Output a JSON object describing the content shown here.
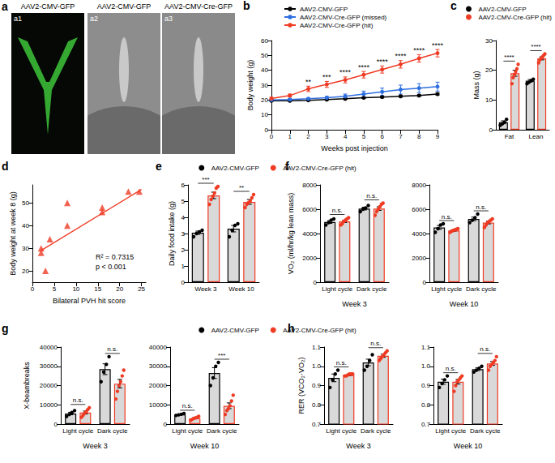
{
  "image_panel": {
    "panel_label": "a",
    "images": [
      {
        "label": "a1",
        "title": "AAV2-CMV-GFP"
      },
      {
        "label": "a2",
        "title": "AAV2-CMV-GFP"
      },
      {
        "label": "a3",
        "title": "AAV2-CMV-Cre-GFP"
      }
    ]
  },
  "chart_data": [
    {
      "panel_label": "b",
      "type": "line",
      "x_label": "Weeks post injection",
      "y_label": "Body weight (g)",
      "x": [
        0,
        1,
        2,
        3,
        4,
        5,
        6,
        7,
        8,
        9
      ],
      "xlim": [
        0,
        9
      ],
      "xticks": [
        0,
        1,
        2,
        3,
        4,
        5,
        6,
        7,
        8,
        9
      ],
      "ylim": [
        0,
        60
      ],
      "yticks": [
        0,
        10,
        20,
        30,
        40,
        50,
        60
      ],
      "legend": "top",
      "marker": "circle",
      "series": [
        {
          "name": "AAV2-CMV-GFP",
          "color": "#000000",
          "values": [
            19.5,
            19.5,
            19.8,
            20.3,
            20.8,
            21.5,
            22,
            22.5,
            23,
            24
          ],
          "errors": [
            0.4,
            0.4,
            0.4,
            0.5,
            0.5,
            0.5,
            0.6,
            0.6,
            0.6,
            0.7
          ]
        },
        {
          "name": "AAV2-CMV-Cre-GFP (missed)",
          "color": "#2e6fe0",
          "values": [
            20,
            20.3,
            20.8,
            21.5,
            22.5,
            24,
            25.5,
            27,
            28,
            29
          ],
          "errors": [
            0.5,
            0.6,
            0.8,
            1,
            1.5,
            2,
            2.5,
            3,
            3,
            3
          ]
        },
        {
          "name": "AAV2-CMV-Cre-GFP (hit)",
          "color": "#ef3b24",
          "values": [
            21,
            23,
            27.5,
            30.5,
            33.5,
            37,
            40.5,
            44,
            48,
            51.5
          ],
          "errors": [
            0.8,
            1,
            1.8,
            2,
            2,
            2.2,
            2.4,
            2.5,
            2.5,
            2.5
          ]
        }
      ],
      "significance": [
        null,
        null,
        "**",
        "***",
        "****",
        "****",
        "****",
        "****",
        "****",
        "****"
      ]
    },
    {
      "panel_label": "c",
      "type": "bar",
      "y_label": "Mass (g)",
      "categories": [
        "Fat",
        "Lean"
      ],
      "ylim": [
        0,
        30
      ],
      "yticks": [
        0,
        10,
        20,
        30
      ],
      "legend": "top",
      "series": [
        {
          "name": "AAV2-CMV-GFP",
          "color": "#000000",
          "values": [
            2.5,
            16.5
          ],
          "errors": [
            0.5,
            0.4
          ],
          "points": [
            [
              1.5,
              2,
              2.5,
              3.5
            ],
            [
              15.5,
              16,
              16.5,
              17
            ]
          ]
        },
        {
          "name": "AAV2-CMV-Cre-GFP (hit)",
          "color": "#ef3b24",
          "values": [
            19,
            24
          ],
          "errors": [
            1,
            0.5
          ],
          "points": [
            [
              15.5,
              17.5,
              18.5,
              19.5,
              20.5,
              22
            ],
            [
              22.5,
              23.5,
              24,
              24.5,
              25,
              25.5
            ]
          ]
        }
      ],
      "significance": [
        "****",
        "****"
      ]
    },
    {
      "panel_label": "d",
      "type": "scatter",
      "x_label": "Bilateral PVH hit score",
      "y_label": "Body weight at week 8 (g)",
      "x": [
        2,
        2,
        3,
        4,
        8,
        8,
        16,
        16,
        22,
        24.5
      ],
      "values": [
        28,
        30,
        20,
        34,
        40,
        50,
        46,
        48,
        55,
        55
      ],
      "color": "#ef3b24",
      "marker": "triangle",
      "xlim": [
        0,
        26
      ],
      "xticks": [
        0,
        5,
        10,
        15,
        20,
        25
      ],
      "ylim": [
        15,
        58
      ],
      "yticks": [
        20,
        30,
        40,
        50
      ],
      "fit_line": {
        "x": [
          2,
          25
        ],
        "values": [
          29,
          56
        ]
      },
      "annotations": [
        "R² = 0.7315",
        "p < 0.001"
      ]
    },
    {
      "panel_label": "e",
      "type": "bar",
      "y_label": "Daily food intake (g)",
      "categories": [
        "Week 3",
        "Week 10"
      ],
      "ylim": [
        0,
        6
      ],
      "yticks": [
        0,
        1,
        2,
        3,
        4,
        5,
        6
      ],
      "legend": "top",
      "series": [
        {
          "name": "AAV2-CMV-GFP",
          "color": "#000000",
          "values": [
            3.05,
            3.3
          ],
          "errors": [
            0.1,
            0.2
          ],
          "points": [
            [
              2.8,
              3,
              3.1,
              3.2
            ],
            [
              2.8,
              3.2,
              3.5,
              3.6
            ]
          ]
        },
        {
          "name": "AAV2-CMV-Cre-GFP (hit)",
          "color": "#ef3b24",
          "values": [
            5.35,
            4.95
          ],
          "errors": [
            0.2,
            0.15
          ],
          "points": [
            [
              4.8,
              5.1,
              5.3,
              5.5,
              5.8,
              5.9
            ],
            [
              4.6,
              4.8,
              4.9,
              5,
              5.2,
              5.4
            ]
          ]
        }
      ],
      "significance": [
        "***",
        "**"
      ]
    },
    {
      "panel_label": "f",
      "type": "bar",
      "y_label": "VO₂ (ml/hr/kg lean mass)",
      "x_label": "Week 3",
      "categories": [
        "Light cycle",
        "Dark cycle"
      ],
      "ylim": [
        0,
        8000
      ],
      "yticks": [
        0,
        2000,
        4000,
        6000,
        8000
      ],
      "series": [
        {
          "name": "AAV2-CMV-GFP",
          "color": "#000000",
          "values": [
            4950,
            6050
          ],
          "errors": [
            120,
            110
          ],
          "points": [
            [
              4700,
              4900,
              5100,
              5200
            ],
            [
              5800,
              6000,
              6100,
              6300
            ]
          ]
        },
        {
          "name": "AAV2-CMV-Cre-GFP (hit)",
          "color": "#ef3b24",
          "values": [
            5000,
            6050
          ],
          "errors": [
            90,
            150
          ],
          "points": [
            [
              4700,
              4800,
              5000,
              5100,
              5200,
              5300
            ],
            [
              5500,
              5800,
              6000,
              6200,
              6400,
              6500
            ]
          ]
        }
      ],
      "significance": [
        "n.s.",
        "n.s."
      ]
    },
    {
      "type": "bar",
      "x_label": "Week 10",
      "categories": [
        "Light cycle",
        "Dark cycle"
      ],
      "ylim": [
        0,
        8000
      ],
      "yticks": [
        0,
        2000,
        4000,
        6000,
        8000
      ],
      "series": [
        {
          "name": "AAV2-CMV-GFP",
          "color": "#000000",
          "values": [
            4500,
            5200
          ],
          "errors": [
            160,
            150
          ],
          "points": [
            [
              4100,
              4400,
              4700,
              4800
            ],
            [
              4900,
              5100,
              5300,
              5600
            ]
          ]
        },
        {
          "name": "AAV2-CMV-Cre-GFP (hit)",
          "color": "#ef3b24",
          "values": [
            4250,
            4900
          ],
          "errors": [
            50,
            110
          ],
          "points": [
            [
              4100,
              4200,
              4250,
              4300,
              4350,
              4400
            ],
            [
              4500,
              4700,
              4900,
              5000,
              5100,
              5200
            ]
          ]
        }
      ],
      "significance": [
        "n.s.",
        "n.s."
      ]
    },
    {
      "panel_label": "g",
      "type": "bar",
      "y_label": "X-beambreaks",
      "x_label": "Week 3",
      "categories": [
        "Light cycle",
        "Dark cycle"
      ],
      "ylim": [
        0,
        40000
      ],
      "yticks": [
        0,
        10000,
        20000,
        30000,
        40000
      ],
      "legend": "top",
      "series": [
        {
          "name": "AAV2-CMV-GFP",
          "color": "#000000",
          "values": [
            5500,
            28500
          ],
          "errors": [
            650,
            2800
          ],
          "points": [
            [
              4000,
              5000,
              6000,
              7000
            ],
            [
              22000,
              27000,
              31000,
              35000
            ]
          ]
        },
        {
          "name": "AAV2-CMV-Cre-GFP (hit)",
          "color": "#ef3b24",
          "values": [
            6000,
            21000
          ],
          "errors": [
            750,
            2200
          ],
          "points": [
            [
              3500,
              4500,
              5500,
              6500,
              7500,
              8500
            ],
            [
              13000,
              17000,
              20000,
              22000,
              25000,
              28000
            ]
          ]
        }
      ],
      "significance": [
        "n.s.",
        "n.s."
      ]
    },
    {
      "type": "bar",
      "x_label": "Week 10",
      "categories": [
        "Light cycle",
        "Dark cycle"
      ],
      "ylim": [
        0,
        40000
      ],
      "yticks": [
        0,
        10000,
        20000,
        30000,
        40000
      ],
      "series": [
        {
          "name": "AAV2-CMV-GFP",
          "color": "#000000",
          "values": [
            5000,
            26500
          ],
          "errors": [
            200,
            2800
          ],
          "points": [
            [
              4500,
              4800,
              5100,
              5500
            ],
            [
              20000,
              24000,
              30000,
              32000
            ]
          ]
        },
        {
          "name": "AAV2-CMV-Cre-GFP (hit)",
          "color": "#ef3b24",
          "values": [
            3000,
            9500
          ],
          "errors": [
            280,
            1500
          ],
          "points": [
            [
              2000,
              2500,
              3000,
              3200,
              3500,
              4000
            ],
            [
              5000,
              7000,
              8000,
              9500,
              12000,
              15000
            ]
          ]
        }
      ],
      "significance": [
        "n.s.",
        "***"
      ]
    },
    {
      "panel_label": "h",
      "type": "bar",
      "y_label": "RER (VCO₂·VO₂)",
      "x_label": "Week 3",
      "categories": [
        "Light cycle",
        "Dark cycle"
      ],
      "ylim": [
        0.7,
        1.1
      ],
      "yticks": [
        0.7,
        0.8,
        0.9,
        {
          "value": 1,
          "label": "1.0"
        },
        1.1
      ],
      "series": [
        {
          "name": "AAV2-CMV-GFP",
          "color": "#000000",
          "values": [
            0.94,
            1.02
          ],
          "errors": [
            0.02,
            0.017
          ],
          "points": [
            [
              0.89,
              0.93,
              0.96,
              0.98
            ],
            [
              0.98,
              1,
              1.03,
              1.06
            ]
          ]
        },
        {
          "name": "AAV2-CMV-Cre-GFP (hit)",
          "color": "#ef3b24",
          "values": [
            0.955,
            1.055
          ],
          "errors": [
            0.003,
            0.008
          ],
          "points": [
            [
              0.95,
              0.95,
              0.955,
              0.96,
              0.96,
              0.96
            ],
            [
              1.03,
              1.04,
              1.05,
              1.06,
              1.07,
              1.08
            ]
          ]
        }
      ],
      "significance": [
        "n.s.",
        "n.s."
      ]
    },
    {
      "type": "bar",
      "x_label": "Week 10",
      "categories": [
        "Light cycle",
        "Dark cycle"
      ],
      "ylim": [
        0.7,
        1.1
      ],
      "yticks": [
        0.7,
        0.8,
        0.9,
        {
          "value": 1,
          "label": "1.0"
        },
        1.1
      ],
      "series": [
        {
          "name": "AAV2-CMV-GFP",
          "color": "#000000",
          "values": [
            0.92,
            0.985
          ],
          "errors": [
            0.013,
            0.007
          ],
          "points": [
            [
              0.89,
              0.91,
              0.93,
              0.95
            ],
            [
              0.97,
              0.98,
              0.99,
              1
            ]
          ]
        },
        {
          "name": "AAV2-CMV-Cre-GFP (hit)",
          "color": "#ef3b24",
          "values": [
            0.92,
            1.015
          ],
          "errors": [
            0.012,
            0.01
          ],
          "points": [
            [
              0.87,
              0.9,
              0.92,
              0.93,
              0.94,
              0.95
            ],
            [
              0.98,
              1,
              1.01,
              1.02,
              1.03,
              1.05
            ]
          ]
        }
      ],
      "significance": [
        "n.s.",
        "n.s."
      ]
    }
  ]
}
